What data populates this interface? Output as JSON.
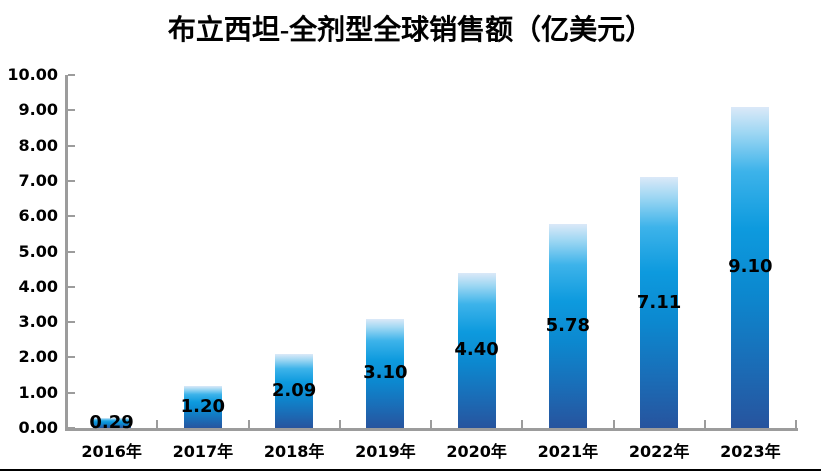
{
  "page": {
    "background_color": "#ffffff",
    "bottom_rule_color": "#000000"
  },
  "chart_data": {
    "type": "bar",
    "title": "布立西坦-全剂型全球销售额（亿美元）",
    "xlabel": "",
    "ylabel": "",
    "categories": [
      "2016年",
      "2017年",
      "2018年",
      "2019年",
      "2020年",
      "2021年",
      "2022年",
      "2023年"
    ],
    "values": [
      0.29,
      1.2,
      2.09,
      3.1,
      4.4,
      5.78,
      7.11,
      9.1
    ],
    "value_labels": [
      "0.29",
      "1.20",
      "2.09",
      "3.10",
      "4.40",
      "5.78",
      "7.11",
      "9.10"
    ],
    "ylim": [
      0,
      10
    ],
    "ytick_step": 1,
    "ytick_labels": [
      "0.00",
      "1.00",
      "2.00",
      "3.00",
      "4.00",
      "5.00",
      "6.00",
      "7.00",
      "8.00",
      "9.00",
      "10.00"
    ],
    "grid": false,
    "legend": "none",
    "value_label_position": "center",
    "axis_color": "#9c9c9c",
    "text_color": "#000000",
    "bar_gradient": [
      {
        "color": "#dbe9f8",
        "pos": 0
      },
      {
        "color": "#9ed7f3",
        "pos": 8
      },
      {
        "color": "#3db3ea",
        "pos": 20
      },
      {
        "color": "#0d9ade",
        "pos": 38
      },
      {
        "color": "#0c88cf",
        "pos": 58
      },
      {
        "color": "#1a6db7",
        "pos": 80
      },
      {
        "color": "#27549e",
        "pos": 100
      }
    ]
  }
}
